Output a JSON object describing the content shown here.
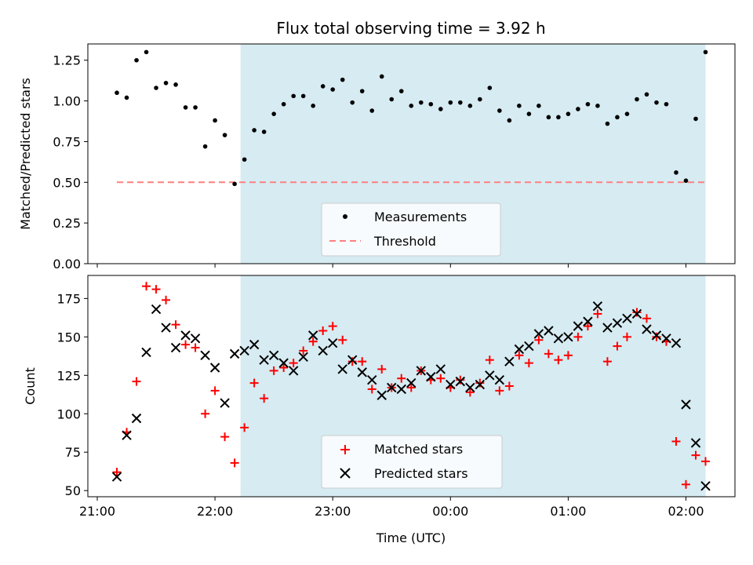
{
  "title": "Flux total observing time = 3.92 h",
  "colors": {
    "shade": "#add8e6",
    "measurement": "#000000",
    "threshold": "#ff7f7f",
    "matched": "#ff0000",
    "predicted": "#000000"
  },
  "chart_data": [
    {
      "type": "scatter",
      "panel": "top",
      "ylabel": "Matched/Predicted stars",
      "xlabel": "",
      "ylim": [
        0,
        1.35
      ],
      "yticks": [
        0.0,
        0.25,
        0.5,
        0.75,
        1.0,
        1.25
      ],
      "ytick_labels": [
        "0.00",
        "0.25",
        "0.50",
        "0.75",
        "1.00",
        "1.25"
      ],
      "shaded_interval": {
        "start": "22:13",
        "end": "02:10"
      },
      "legend": [
        "Measurements",
        "Threshold"
      ],
      "legend_loc": "lower center",
      "threshold": {
        "name": "Threshold",
        "value": 0.5,
        "start": "21:10",
        "end": "02:10"
      },
      "series": [
        {
          "name": "Measurements",
          "style": "dot",
          "points": [
            [
              "21:10",
              1.05
            ],
            [
              "21:15",
              1.02
            ],
            [
              "21:20",
              1.25
            ],
            [
              "21:25",
              1.3
            ],
            [
              "21:30",
              1.08
            ],
            [
              "21:35",
              1.11
            ],
            [
              "21:40",
              1.1
            ],
            [
              "21:45",
              0.96
            ],
            [
              "21:50",
              0.96
            ],
            [
              "21:55",
              0.72
            ],
            [
              "22:00",
              0.88
            ],
            [
              "22:05",
              0.79
            ],
            [
              "22:10",
              0.49
            ],
            [
              "22:15",
              0.64
            ],
            [
              "22:20",
              0.82
            ],
            [
              "22:25",
              0.81
            ],
            [
              "22:30",
              0.92
            ],
            [
              "22:35",
              0.98
            ],
            [
              "22:40",
              1.03
            ],
            [
              "22:45",
              1.03
            ],
            [
              "22:50",
              0.97
            ],
            [
              "22:55",
              1.09
            ],
            [
              "23:00",
              1.07
            ],
            [
              "23:05",
              1.13
            ],
            [
              "23:10",
              0.99
            ],
            [
              "23:15",
              1.06
            ],
            [
              "23:20",
              0.94
            ],
            [
              "23:25",
              1.15
            ],
            [
              "23:30",
              1.01
            ],
            [
              "23:35",
              1.06
            ],
            [
              "23:40",
              0.97
            ],
            [
              "23:45",
              0.99
            ],
            [
              "23:50",
              0.98
            ],
            [
              "23:55",
              0.95
            ],
            [
              "00:00",
              0.99
            ],
            [
              "00:05",
              0.99
            ],
            [
              "00:10",
              0.97
            ],
            [
              "00:15",
              1.01
            ],
            [
              "00:20",
              1.08
            ],
            [
              "00:25",
              0.94
            ],
            [
              "00:30",
              0.88
            ],
            [
              "00:35",
              0.97
            ],
            [
              "00:40",
              0.92
            ],
            [
              "00:45",
              0.97
            ],
            [
              "00:50",
              0.9
            ],
            [
              "00:55",
              0.9
            ],
            [
              "01:00",
              0.92
            ],
            [
              "01:05",
              0.95
            ],
            [
              "01:10",
              0.98
            ],
            [
              "01:15",
              0.97
            ],
            [
              "01:20",
              0.86
            ],
            [
              "01:25",
              0.9
            ],
            [
              "01:30",
              0.92
            ],
            [
              "01:35",
              1.01
            ],
            [
              "01:40",
              1.04
            ],
            [
              "01:45",
              0.99
            ],
            [
              "01:50",
              0.98
            ],
            [
              "01:55",
              0.56
            ],
            [
              "02:00",
              0.51
            ],
            [
              "02:05",
              0.89
            ],
            [
              "02:10",
              1.3
            ]
          ]
        }
      ]
    },
    {
      "type": "scatter",
      "panel": "bottom",
      "ylabel": "Count",
      "xlabel": "Time (UTC)",
      "ylim": [
        46,
        190
      ],
      "yticks": [
        50,
        75,
        100,
        125,
        150,
        175
      ],
      "ytick_labels": [
        "50",
        "75",
        "100",
        "125",
        "150",
        "175"
      ],
      "xticks": [
        "21:00",
        "22:00",
        "23:00",
        "00:00",
        "01:00",
        "02:00"
      ],
      "xtick_labels": [
        "21:00",
        "22:00",
        "23:00",
        "00:00",
        "01:00",
        "02:00"
      ],
      "shaded_interval": {
        "start": "22:13",
        "end": "02:10"
      },
      "legend": [
        "Matched stars",
        "Predicted stars"
      ],
      "legend_loc": "lower center",
      "series": [
        {
          "name": "Matched stars",
          "style": "plus",
          "points": [
            [
              "21:10",
              62
            ],
            [
              "21:15",
              88
            ],
            [
              "21:20",
              121
            ],
            [
              "21:25",
              183
            ],
            [
              "21:30",
              181
            ],
            [
              "21:35",
              174
            ],
            [
              "21:40",
              158
            ],
            [
              "21:45",
              145
            ],
            [
              "21:50",
              143
            ],
            [
              "21:55",
              100
            ],
            [
              "22:00",
              115
            ],
            [
              "22:05",
              85
            ],
            [
              "22:10",
              68
            ],
            [
              "22:15",
              91
            ],
            [
              "22:20",
              120
            ],
            [
              "22:25",
              110
            ],
            [
              "22:30",
              128
            ],
            [
              "22:35",
              130
            ],
            [
              "22:40",
              133
            ],
            [
              "22:45",
              141
            ],
            [
              "22:50",
              147
            ],
            [
              "22:55",
              154
            ],
            [
              "23:00",
              157
            ],
            [
              "23:05",
              148
            ],
            [
              "23:10",
              134
            ],
            [
              "23:15",
              134
            ],
            [
              "23:20",
              116
            ],
            [
              "23:25",
              129
            ],
            [
              "23:30",
              117
            ],
            [
              "23:35",
              123
            ],
            [
              "23:40",
              117
            ],
            [
              "23:45",
              128
            ],
            [
              "23:50",
              122
            ],
            [
              "23:55",
              123
            ],
            [
              "00:00",
              117
            ],
            [
              "00:05",
              122
            ],
            [
              "00:10",
              114
            ],
            [
              "00:15",
              120
            ],
            [
              "00:20",
              135
            ],
            [
              "00:25",
              115
            ],
            [
              "00:30",
              118
            ],
            [
              "00:35",
              138
            ],
            [
              "00:40",
              133
            ],
            [
              "00:45",
              148
            ],
            [
              "00:50",
              139
            ],
            [
              "00:55",
              135
            ],
            [
              "01:00",
              138
            ],
            [
              "01:05",
              150
            ],
            [
              "01:10",
              157
            ],
            [
              "01:15",
              165
            ],
            [
              "01:20",
              134
            ],
            [
              "01:25",
              144
            ],
            [
              "01:30",
              150
            ],
            [
              "01:35",
              166
            ],
            [
              "01:40",
              162
            ],
            [
              "01:45",
              150
            ],
            [
              "01:50",
              147
            ],
            [
              "01:55",
              82
            ],
            [
              "02:00",
              54
            ],
            [
              "02:05",
              73
            ],
            [
              "02:10",
              69
            ]
          ]
        },
        {
          "name": "Predicted stars",
          "style": "x",
          "points": [
            [
              "21:10",
              59
            ],
            [
              "21:15",
              86
            ],
            [
              "21:20",
              97
            ],
            [
              "21:25",
              140
            ],
            [
              "21:30",
              168
            ],
            [
              "21:35",
              156
            ],
            [
              "21:40",
              143
            ],
            [
              "21:45",
              151
            ],
            [
              "21:50",
              149
            ],
            [
              "21:55",
              138
            ],
            [
              "22:00",
              130
            ],
            [
              "22:05",
              107
            ],
            [
              "22:10",
              139
            ],
            [
              "22:15",
              141
            ],
            [
              "22:20",
              145
            ],
            [
              "22:25",
              135
            ],
            [
              "22:30",
              138
            ],
            [
              "22:35",
              133
            ],
            [
              "22:40",
              128
            ],
            [
              "22:45",
              137
            ],
            [
              "22:50",
              151
            ],
            [
              "22:55",
              141
            ],
            [
              "23:00",
              146
            ],
            [
              "23:05",
              129
            ],
            [
              "23:10",
              135
            ],
            [
              "23:15",
              127
            ],
            [
              "23:20",
              122
            ],
            [
              "23:25",
              112
            ],
            [
              "23:30",
              117
            ],
            [
              "23:35",
              116
            ],
            [
              "23:40",
              120
            ],
            [
              "23:45",
              128
            ],
            [
              "23:50",
              124
            ],
            [
              "23:55",
              129
            ],
            [
              "00:00",
              119
            ],
            [
              "00:05",
              121
            ],
            [
              "00:10",
              117
            ],
            [
              "00:15",
              119
            ],
            [
              "00:20",
              125
            ],
            [
              "00:25",
              122
            ],
            [
              "00:30",
              134
            ],
            [
              "00:35",
              142
            ],
            [
              "00:40",
              144
            ],
            [
              "00:45",
              152
            ],
            [
              "00:50",
              154
            ],
            [
              "00:55",
              149
            ],
            [
              "01:00",
              150
            ],
            [
              "01:05",
              157
            ],
            [
              "01:10",
              160
            ],
            [
              "01:15",
              170
            ],
            [
              "01:20",
              156
            ],
            [
              "01:25",
              159
            ],
            [
              "01:30",
              162
            ],
            [
              "01:35",
              165
            ],
            [
              "01:40",
              155
            ],
            [
              "01:45",
              151
            ],
            [
              "01:50",
              149
            ],
            [
              "01:55",
              146
            ],
            [
              "02:00",
              106
            ],
            [
              "02:05",
              81
            ],
            [
              "02:10",
              53
            ]
          ]
        }
      ]
    }
  ]
}
